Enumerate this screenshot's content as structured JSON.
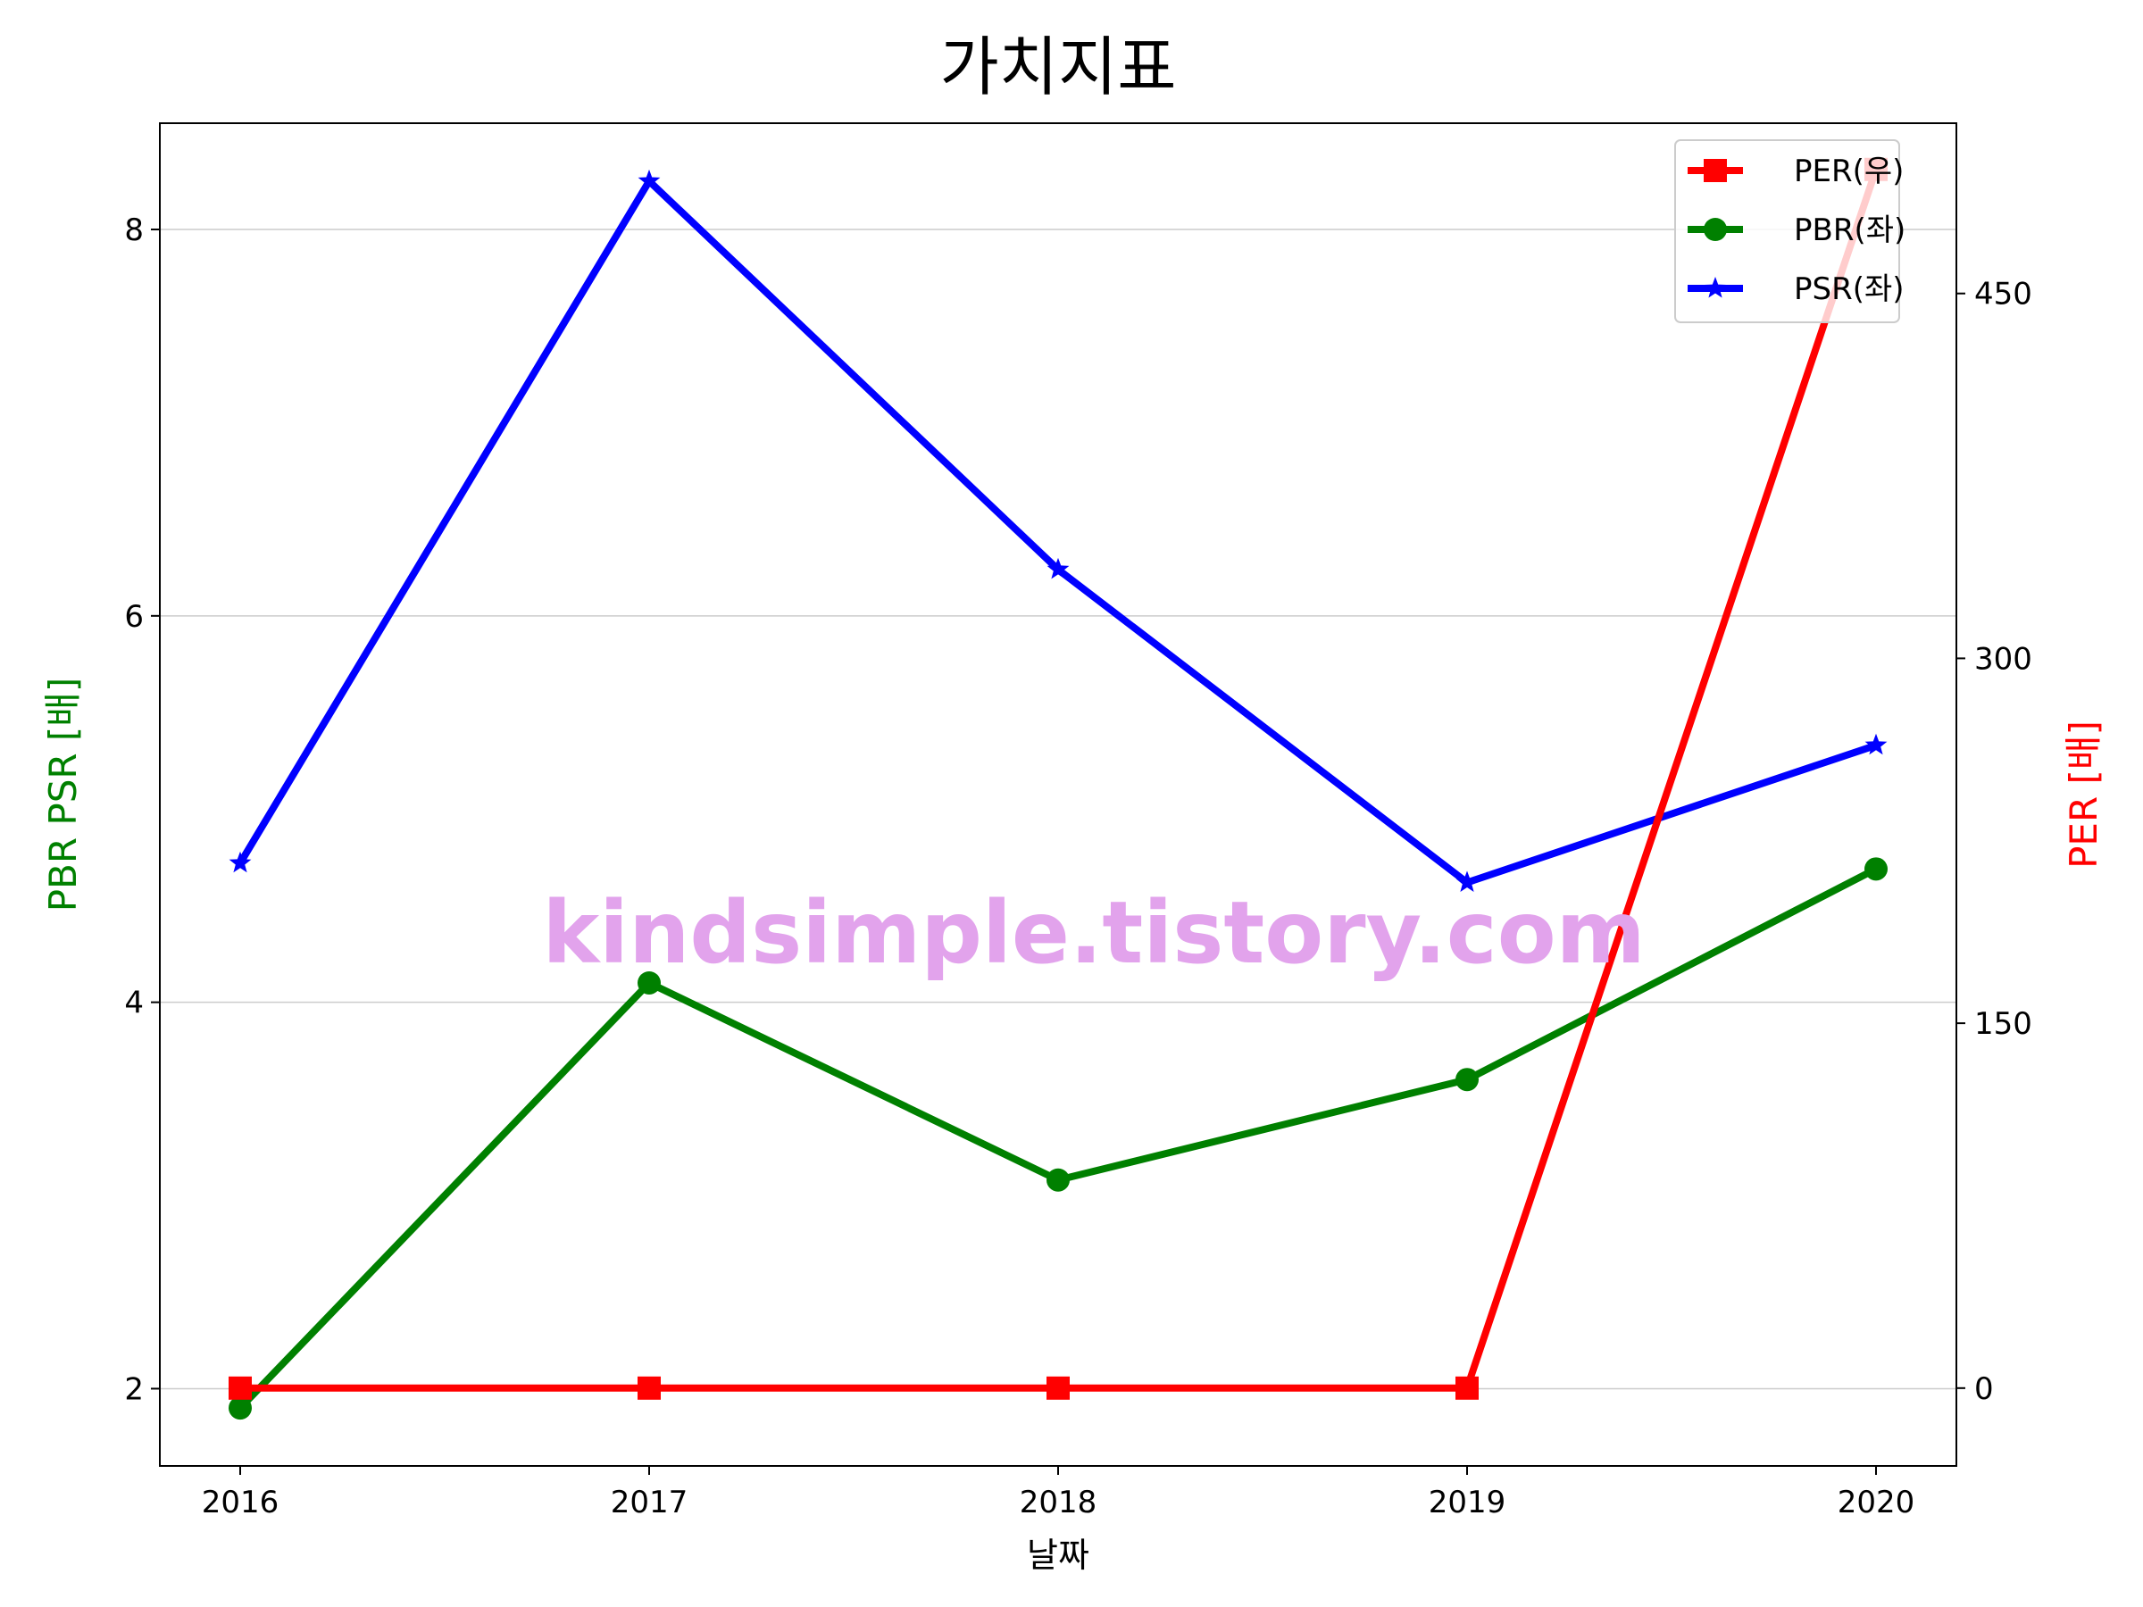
{
  "chart_data": {
    "type": "line",
    "title": "가치지표",
    "xlabel": "날짜",
    "ylabel_left": "PBR PSR [배]",
    "ylabel_right": "PER [배]",
    "watermark": "kindsimple.tistory.com",
    "x": [
      "2016",
      "2017",
      "2018",
      "2019",
      "2020"
    ],
    "y_left_range": [
      1.6,
      8.55
    ],
    "y_left_ticks": [
      "2",
      "4",
      "6",
      "8"
    ],
    "y_right_range": [
      -32,
      520
    ],
    "y_right_ticks": [
      "0",
      "150",
      "300",
      "450"
    ],
    "grid": "horizontal, left axis",
    "legend_position": "top-right",
    "series": [
      {
        "name": "PER(우)",
        "axis": "right",
        "color": "#ff0000",
        "marker": "square",
        "values": [
          0,
          0,
          0,
          0,
          501
        ]
      },
      {
        "name": "PBR(좌)",
        "axis": "left",
        "color": "#008000",
        "marker": "circle",
        "values": [
          1.9,
          4.1,
          3.08,
          3.6,
          4.69
        ]
      },
      {
        "name": "PSR(좌)",
        "axis": "left",
        "color": "#0000ff",
        "marker": "star",
        "values": [
          4.72,
          8.25,
          6.24,
          4.62,
          5.33
        ]
      }
    ]
  }
}
